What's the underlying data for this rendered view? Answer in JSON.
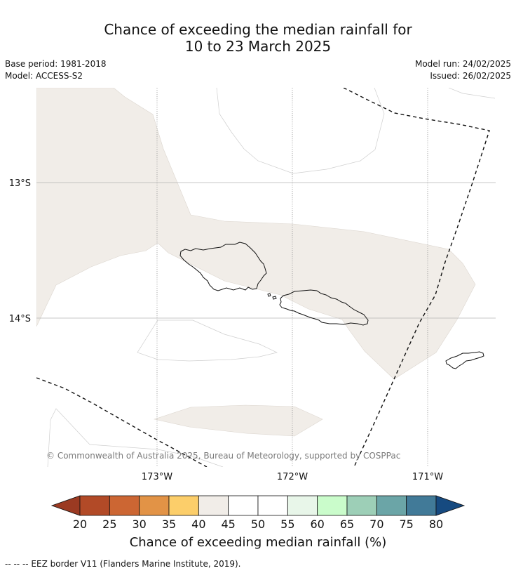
{
  "title_line1": "Chance of exceeding the median rainfall for",
  "title_line2": "10 to 23 March 2025",
  "base_period": "Base period: 1981-2018",
  "model": "Model: ACCESS-S2",
  "model_run": "Model run: 24/02/2025",
  "issued": "Issued: 26/02/2025",
  "lat_labels": [
    "13°S",
    "14°S"
  ],
  "lon_labels": [
    "173°W",
    "172°W",
    "171°W"
  ],
  "copyright": "© Commonwealth of Australia 2025, Bureau of Meteorology, supported by COSPPac",
  "colorbar": {
    "title": "Chance of exceeding median rainfall (%)",
    "ticks": [
      "20",
      "25",
      "30",
      "35",
      "40",
      "45",
      "50",
      "55",
      "60",
      "65",
      "70",
      "75",
      "80"
    ],
    "under_color": "#9b3a22",
    "over_color": "#164a80",
    "colors": [
      "#b24a27",
      "#cc6633",
      "#e29346",
      "#fcce6a",
      "#f1ede8",
      "#ffffff",
      "#ffffff",
      "#e8f6e9",
      "#cafccb",
      "#9dcfb7",
      "#6ba5a7",
      "#417a98"
    ]
  },
  "footnote": "--  --  -- EEZ border V11 (Flanders Marine Institute, 2019)."
}
